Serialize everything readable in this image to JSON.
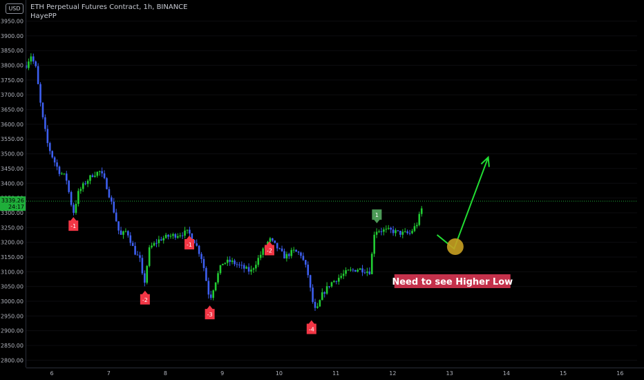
{
  "header": {
    "currency": "USD",
    "title": "ETH Perpetual Futures Contract, 1h, BINANCE",
    "indicator": "HayePP"
  },
  "colors": {
    "up": "#22cc33",
    "down": "#3d5ff0",
    "marker_bear": "#f23645",
    "marker_bull": "#4c9a57",
    "arrow": "#22dd33",
    "circle": "#c8a021",
    "annotation_bg": "#c4314b",
    "price_line": "#1fae3a"
  },
  "chart_data": {
    "type": "candlestick",
    "symbol": "ETH Perpetual Futures Contract",
    "interval": "1h",
    "exchange": "BINANCE",
    "y_axis": {
      "range": [
        2775,
        3970
      ],
      "ticks": [
        2800,
        2850,
        2900,
        2950,
        3000,
        3050,
        3100,
        3150,
        3200,
        3250,
        3300,
        3350,
        3400,
        3450,
        3500,
        3550,
        3600,
        3650,
        3700,
        3750,
        3800,
        3850,
        3900,
        3950
      ],
      "tick_labels": [
        "2800.00",
        "2850.00",
        "2900.00",
        "2950.00",
        "3000.00",
        "3050.00",
        "3100.00",
        "3150.00",
        "3200.00",
        "3250.00",
        "3300.00",
        "3350.00",
        "3400.00",
        "3450.00",
        "3500.00",
        "3550.00",
        "3600.00",
        "3650.00",
        "3700.00",
        "3750.00",
        "3800.00",
        "3850.00",
        "3900.00",
        "3950.00"
      ]
    },
    "x_axis": {
      "range": [
        5.55,
        16.3
      ],
      "ticks": [
        6,
        7,
        8,
        9,
        10,
        11,
        12,
        13,
        14,
        15,
        16
      ],
      "tick_labels": [
        "6",
        "7",
        "8",
        "9",
        "10",
        "11",
        "12",
        "13",
        "14",
        "15",
        "16"
      ]
    },
    "price_path": [
      [
        5.55,
        3800
      ],
      [
        5.63,
        3835
      ],
      [
        5.72,
        3790
      ],
      [
        5.82,
        3640
      ],
      [
        5.93,
        3530
      ],
      [
        6.03,
        3480
      ],
      [
        6.13,
        3440
      ],
      [
        6.25,
        3420
      ],
      [
        6.33,
        3340
      ],
      [
        6.38,
        3300
      ],
      [
        6.47,
        3370
      ],
      [
        6.58,
        3400
      ],
      [
        6.72,
        3430
      ],
      [
        6.85,
        3440
      ],
      [
        6.95,
        3400
      ],
      [
        7.1,
        3300
      ],
      [
        7.2,
        3220
      ],
      [
        7.32,
        3240
      ],
      [
        7.45,
        3170
      ],
      [
        7.55,
        3140
      ],
      [
        7.62,
        3050
      ],
      [
        7.72,
        3180
      ],
      [
        7.9,
        3210
      ],
      [
        8.05,
        3220
      ],
      [
        8.2,
        3225
      ],
      [
        8.4,
        3235
      ],
      [
        8.52,
        3200
      ],
      [
        8.65,
        3140
      ],
      [
        8.78,
        3005
      ],
      [
        8.9,
        3080
      ],
      [
        9.0,
        3130
      ],
      [
        9.15,
        3135
      ],
      [
        9.35,
        3115
      ],
      [
        9.5,
        3100
      ],
      [
        9.68,
        3160
      ],
      [
        9.83,
        3210
      ],
      [
        9.95,
        3185
      ],
      [
        10.1,
        3150
      ],
      [
        10.25,
        3170
      ],
      [
        10.38,
        3160
      ],
      [
        10.5,
        3100
      ],
      [
        10.58,
        3005
      ],
      [
        10.65,
        2960
      ],
      [
        10.75,
        3020
      ],
      [
        10.9,
        3060
      ],
      [
        11.05,
        3080
      ],
      [
        11.2,
        3100
      ],
      [
        11.4,
        3110
      ],
      [
        11.6,
        3100
      ],
      [
        11.68,
        3240
      ],
      [
        11.8,
        3240
      ],
      [
        11.95,
        3240
      ],
      [
        12.15,
        3230
      ],
      [
        12.3,
        3230
      ],
      [
        12.42,
        3260
      ],
      [
        12.52,
        3320
      ]
    ],
    "last_price": {
      "value": "3339.26",
      "countdown": "24:17"
    },
    "markers": [
      {
        "label": "-1",
        "x": 6.38,
        "price": 3295,
        "type": "bear"
      },
      {
        "label": "-2",
        "x": 7.64,
        "price": 3045,
        "type": "bear"
      },
      {
        "label": "-1",
        "x": 8.42,
        "price": 3232,
        "type": "bear"
      },
      {
        "label": "-3",
        "x": 8.78,
        "price": 2995,
        "type": "bear"
      },
      {
        "label": "-2",
        "x": 9.83,
        "price": 3212,
        "type": "bear"
      },
      {
        "label": "-4",
        "x": 10.57,
        "price": 2945,
        "type": "bear"
      },
      {
        "label": "1",
        "x": 11.72,
        "price": 3255,
        "type": "bull"
      }
    ],
    "drawings": {
      "arrow_path": [
        [
          12.78,
          3225
        ],
        [
          13.08,
          3178
        ],
        [
          13.68,
          3488
        ]
      ],
      "circle": {
        "x": 13.1,
        "price": 3185
      },
      "annotation": {
        "text": "Need to see Higher Low",
        "x": 13.05,
        "price": 3068
      }
    }
  }
}
